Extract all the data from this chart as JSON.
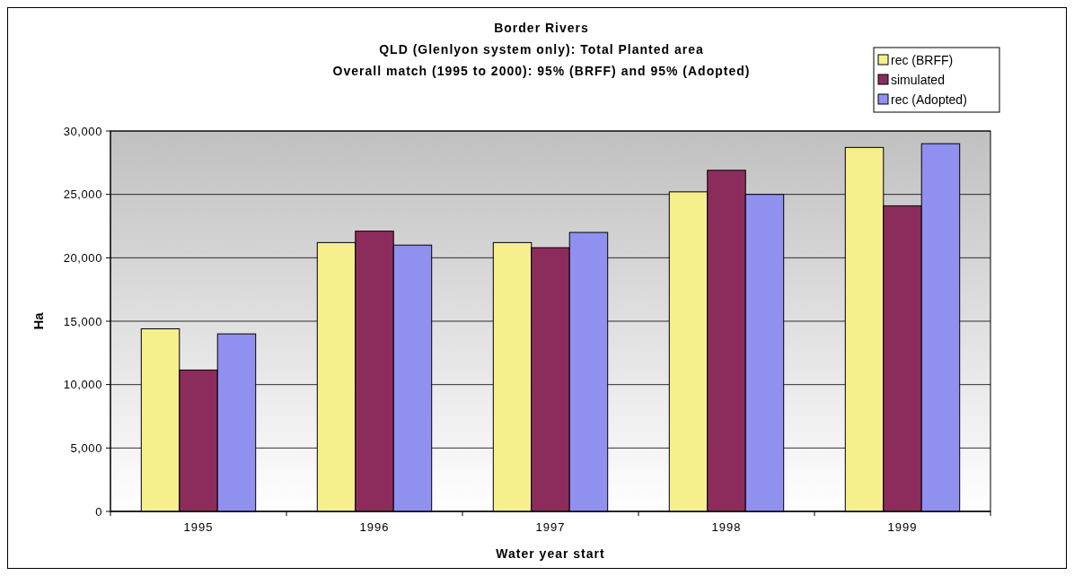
{
  "chart_data": {
    "type": "bar",
    "title": "Border Rivers",
    "subtitle": "QLD (Glenlyon system only): Total Planted area\nOverall match (1995 to 2000): 95% (BRFF) and 95% (Adopted)",
    "xlabel": "Water year start",
    "ylabel": "Ha",
    "categories": [
      "1995",
      "1996",
      "1997",
      "1998",
      "1999"
    ],
    "series": [
      {
        "name": "rec (BRFF)",
        "color": "#f5f08c",
        "values": [
          14400,
          21200,
          21200,
          25200,
          28700
        ]
      },
      {
        "name": "simulated",
        "color": "#8c2c5c",
        "values": [
          11150,
          22100,
          20800,
          26900,
          24100
        ]
      },
      {
        "name": "rec (Adopted)",
        "color": "#9090f0",
        "values": [
          14000,
          21000,
          22000,
          25000,
          29000
        ]
      }
    ],
    "ylim": [
      0,
      30000
    ],
    "yticks": [
      {
        "value": 0,
        "label": "0"
      },
      {
        "value": 5000,
        "label": "5,000"
      },
      {
        "value": 10000,
        "label": "10,000"
      },
      {
        "value": 15000,
        "label": "15,000"
      },
      {
        "value": 20000,
        "label": "20,000"
      },
      {
        "value": 25000,
        "label": "25,000"
      },
      {
        "value": 30000,
        "label": "30,000"
      }
    ],
    "grid": "y",
    "legend": "top right"
  }
}
